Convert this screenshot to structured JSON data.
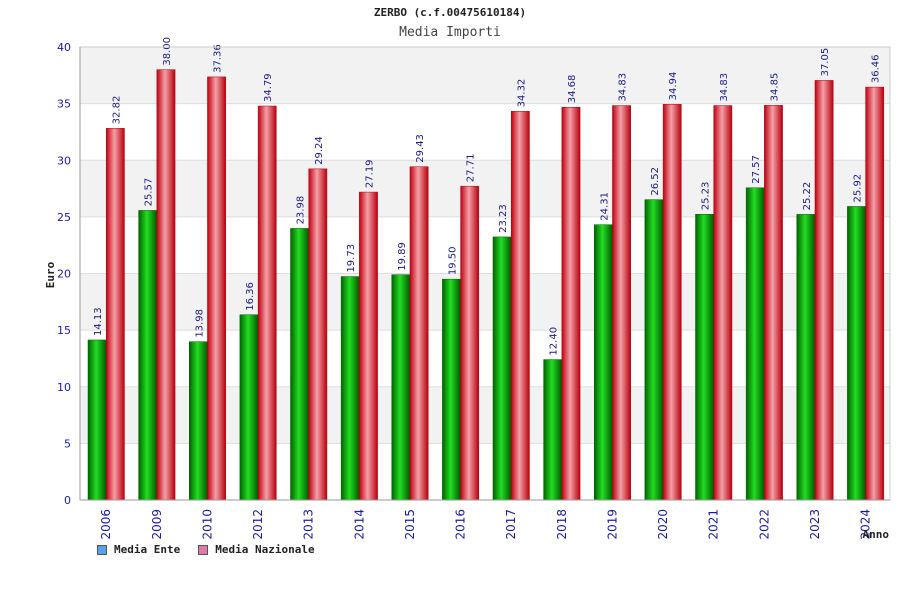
{
  "chart_data": {
    "type": "bar",
    "title": "ZERBO (c.f.00475610184)",
    "subtitle": "Media Importi",
    "xlabel": "Anno",
    "ylabel": "Euro",
    "ylim": [
      0,
      40
    ],
    "yticks": [
      0,
      5,
      10,
      15,
      20,
      25,
      30,
      35,
      40
    ],
    "categories": [
      "2006",
      "2009",
      "2010",
      "2012",
      "2013",
      "2014",
      "2015",
      "2016",
      "2017",
      "2018",
      "2019",
      "2020",
      "2021",
      "2022",
      "2023",
      "2024"
    ],
    "series": [
      {
        "name": "Media Ente",
        "values": [
          14.13,
          25.57,
          13.98,
          16.36,
          23.98,
          19.73,
          19.89,
          19.5,
          23.23,
          12.4,
          24.31,
          26.52,
          25.23,
          27.57,
          25.22,
          25.92
        ],
        "labels": [
          "14.13",
          "25.57",
          "13.98",
          "16.36",
          "23.98",
          "19.73",
          "19.89",
          "19.50",
          "23.23",
          "12.40",
          "24.31",
          "26.52",
          "25.23",
          "27.57",
          "25.22",
          "25.92"
        ],
        "color": "#00b000",
        "legend_color": "#5aa0e6"
      },
      {
        "name": "Media Nazionale",
        "values": [
          32.82,
          38.0,
          37.36,
          34.79,
          29.24,
          27.19,
          29.43,
          27.71,
          34.32,
          34.68,
          34.83,
          34.94,
          34.83,
          34.85,
          37.05,
          36.46
        ],
        "labels": [
          "32.82",
          "38.00",
          "37.36",
          "34.79",
          "29.24",
          "27.19",
          "29.43",
          "27.71",
          "34.32",
          "34.68",
          "34.83",
          "34.94",
          "34.83",
          "34.85",
          "37.05",
          "36.46"
        ],
        "color": "#e0101a",
        "legend_color": "#e07aa8"
      }
    ],
    "legend": "bottom-left",
    "grid": true
  }
}
